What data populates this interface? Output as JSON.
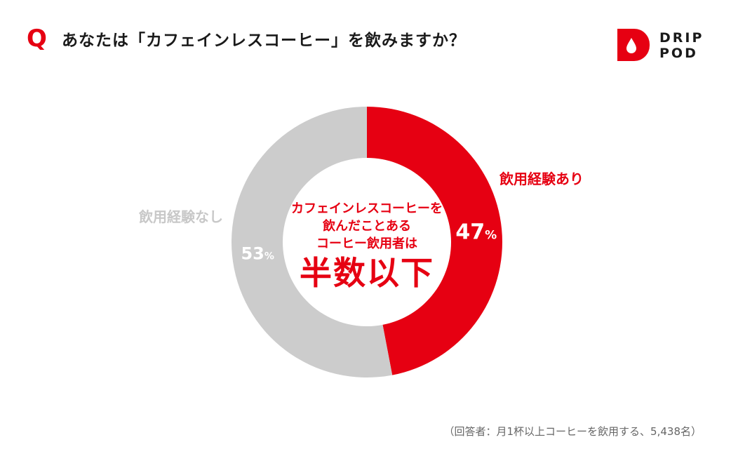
{
  "header": {
    "q_mark": "Q",
    "question": "あなたは「カフェインレスコーヒー」を飲みますか？"
  },
  "logo": {
    "line1": "DRIP",
    "line2": "POD",
    "icon": "drop-icon",
    "color": "#e60012"
  },
  "chart_data": {
    "type": "pie",
    "variant": "donut",
    "categories": [
      "飲用経験あり",
      "飲用経験なし"
    ],
    "values": [
      47,
      53
    ],
    "value_labels": [
      "47",
      "53"
    ],
    "unit": "%",
    "colors": [
      "#e60012",
      "#cccccc"
    ],
    "center_text": {
      "lines": [
        "カフェインレスコーヒーを",
        "飲んだことある",
        "コーヒー飲用者は"
      ],
      "emphasis": "半数以下"
    }
  },
  "footnote": "（回答者：月1杯以上コーヒーを飲用する、5,438名）"
}
